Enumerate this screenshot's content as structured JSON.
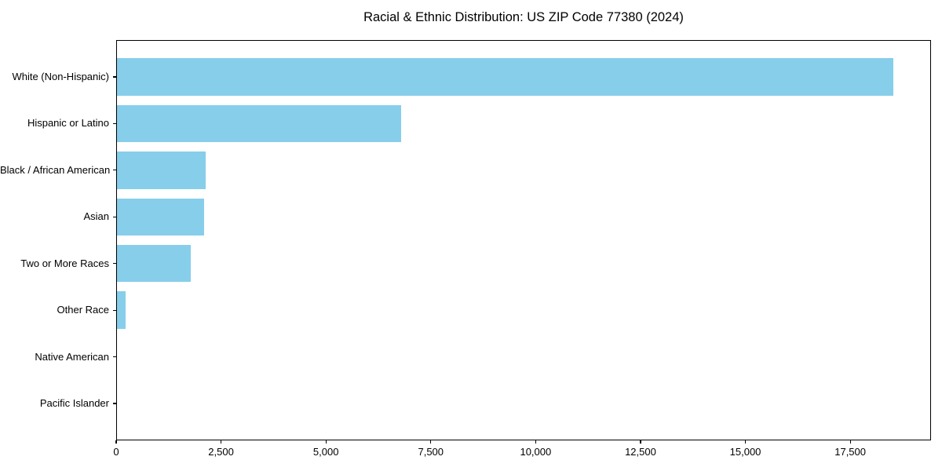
{
  "title": "Racial & Ethnic Distribution: US ZIP Code 77380 (2024)",
  "colors": {
    "bar": "#87CEEB",
    "spine": "#000000",
    "text": "#000000",
    "background": "#ffffff"
  },
  "chart_data": {
    "type": "bar",
    "orientation": "horizontal",
    "title": "Racial & Ethnic Distribution: US ZIP Code 77380 (2024)",
    "xlabel": "",
    "ylabel": "",
    "categories": [
      "White (Non-Hispanic)",
      "Hispanic or Latino",
      "Black / African American",
      "Asian",
      "Two or More Races",
      "Other Race",
      "Native American",
      "Pacific Islander"
    ],
    "values": [
      18500,
      6780,
      2110,
      2080,
      1750,
      200,
      0,
      0
    ],
    "bar_color": "#87CEEB",
    "xlim": [
      0,
      19425
    ],
    "x_ticks": [
      0,
      2500,
      5000,
      7500,
      10000,
      12500,
      15000,
      17500
    ],
    "x_tick_labels": [
      "0",
      "2,500",
      "5,000",
      "7,500",
      "10,000",
      "12,500",
      "15,000",
      "17,500"
    ],
    "grid": false,
    "legend": null
  }
}
